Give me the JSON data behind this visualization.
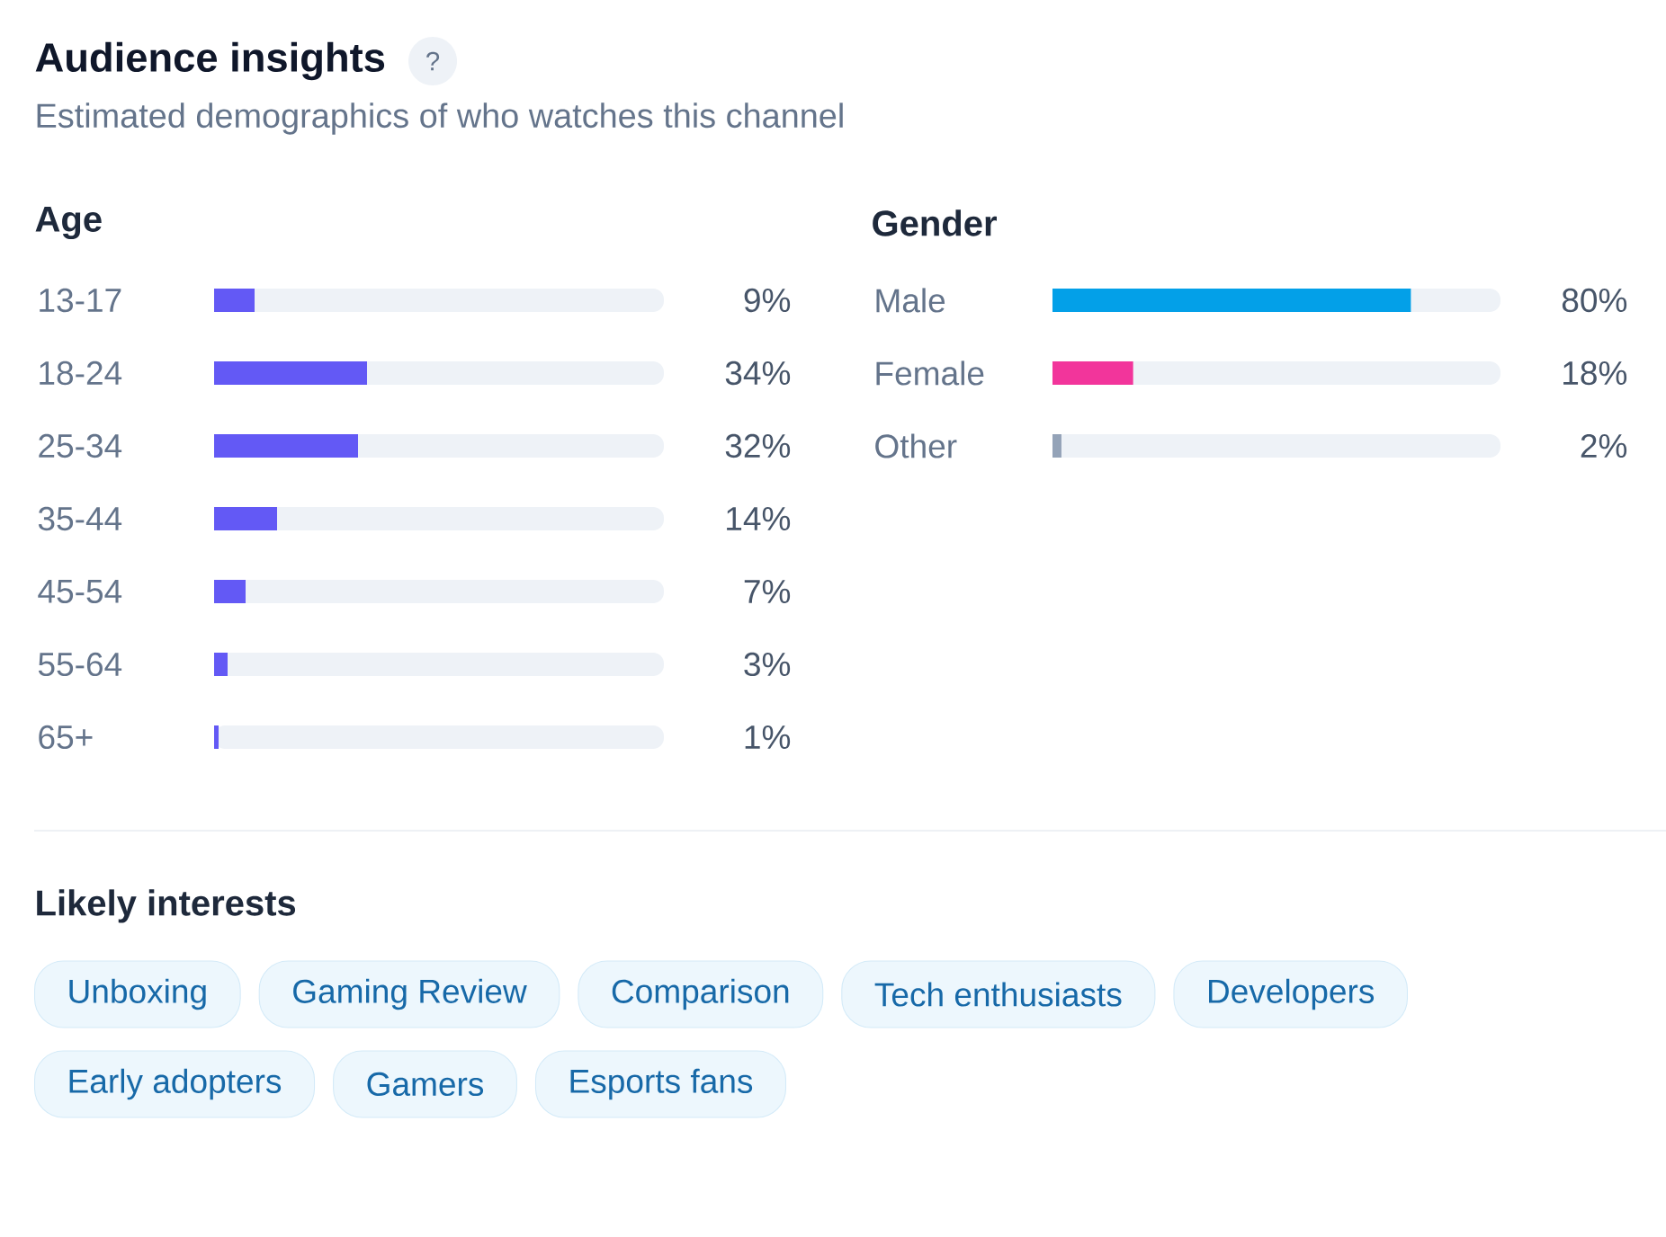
{
  "chart_data": [
    {
      "type": "other",
      "title": "Audience insights",
      "subtitle": "Estimated demographics of who watches this channel",
      "annotations": [
        "?"
      ]
    },
    {
      "type": "bar",
      "orientation": "horizontal",
      "title": "Age",
      "categories": [
        "13-17",
        "18-24",
        "25-34",
        "35-44",
        "45-54",
        "55-64",
        "65+"
      ],
      "values": [
        9,
        34,
        32,
        14,
        7,
        3,
        1
      ],
      "value_labels": [
        "9%",
        "34%",
        "32%",
        "14%",
        "7%",
        "3%",
        "1%"
      ],
      "color": "#6359f5",
      "xlim": [
        0,
        100
      ],
      "tick_labels": "y"
    },
    {
      "type": "bar",
      "orientation": "horizontal",
      "title": "Gender",
      "categories": [
        "Male",
        "Female",
        "Other"
      ],
      "values": [
        80,
        18,
        2
      ],
      "value_labels": [
        "80%",
        "18%",
        "2%"
      ],
      "colors": [
        "#03a0e8",
        "#f2359b",
        "#94a3b8"
      ],
      "xlim": [
        0,
        100
      ],
      "tick_labels": "y"
    },
    {
      "type": "other",
      "title": "Likely interests",
      "annotations": [
        "Unboxing",
        "Gaming Review",
        "Comparison",
        "Tech enthusiasts",
        "Developers",
        "Early adopters",
        "Gamers",
        "Esports fans"
      ]
    }
  ]
}
